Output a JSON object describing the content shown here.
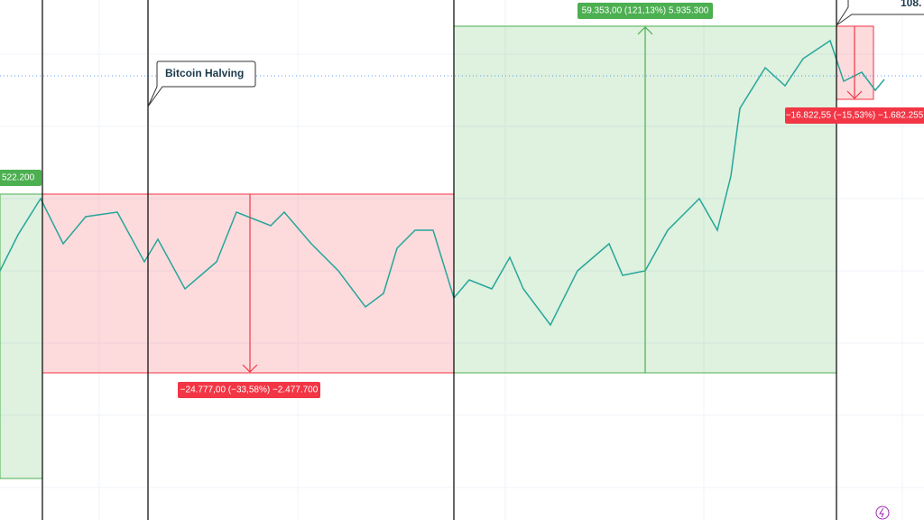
{
  "annotations": {
    "left_label": "522.200",
    "halving": "Bitcoin Halving",
    "gain_label": "59.353,00 (121,13%) 5.935.300",
    "loss_label": "−24.777,00 (−33,58%) −2.477.700",
    "recent_loss_label": "−16.822,55 (−15,53%) −1.682.255",
    "price_label": "108."
  }
}
